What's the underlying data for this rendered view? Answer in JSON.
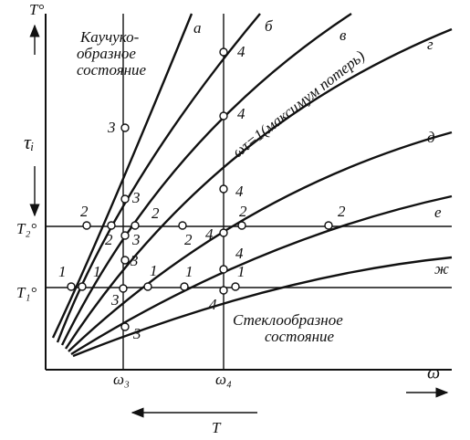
{
  "axis_labels": {
    "y_top": "T°",
    "y_left": "τᵢ",
    "t2": "T₂°",
    "t1": "T₁°",
    "w3": "ω₃",
    "w4": "ω₄",
    "x_right": "ω",
    "bottom": "T"
  },
  "regions": {
    "rubbery": [
      "Каучуко-",
      "образное",
      "состояние"
    ],
    "glassy": [
      "Стеклообразное",
      "состояние"
    ]
  },
  "annotation": "ωτ=1(максимум потерь)",
  "curve_labels": [
    "а",
    "б",
    "в",
    "г",
    "д",
    "е",
    "ж"
  ],
  "point_labels": [
    "1",
    "1",
    "1",
    "1",
    "1",
    "4",
    "3",
    "2",
    "2",
    "2",
    "2",
    "2",
    "2",
    "4",
    "3",
    "3",
    "3",
    "3",
    "3",
    "4",
    "4",
    "4",
    "4"
  ]
}
